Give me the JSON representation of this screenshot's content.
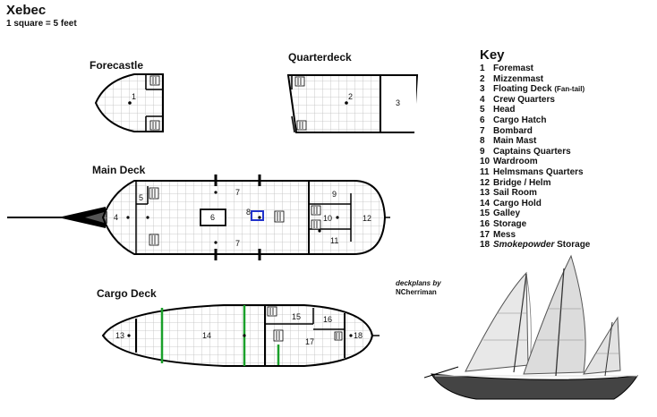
{
  "title": "Xebec",
  "scale": "1 square = 5 feet",
  "decks": {
    "forecastle": "Forecastle",
    "quarterdeck": "Quarterdeck",
    "main": "Main Deck",
    "cargo": "Cargo Deck"
  },
  "rooms": {
    "forecastle": [
      "1"
    ],
    "quarterdeck": [
      "2",
      "3"
    ],
    "main": [
      "4",
      "5",
      "6",
      "7",
      "8",
      "7",
      "9",
      "10",
      "12",
      "11"
    ],
    "cargo": [
      "13",
      "14",
      "15",
      "16",
      "17",
      "18"
    ]
  },
  "key": {
    "heading": "Key",
    "items": [
      {
        "num": "1",
        "label": "Foremast"
      },
      {
        "num": "2",
        "label": "Mizzenmast"
      },
      {
        "num": "3",
        "label": "Floating Deck",
        "note": "(Fan-tail)"
      },
      {
        "num": "4",
        "label": "Crew Quarters"
      },
      {
        "num": "5",
        "label": "Head"
      },
      {
        "num": "6",
        "label": "Cargo Hatch"
      },
      {
        "num": "7",
        "label": "Bombard"
      },
      {
        "num": "8",
        "label": "Main Mast"
      },
      {
        "num": "9",
        "label": "Captains Quarters"
      },
      {
        "num": "10",
        "label": "Wardroom"
      },
      {
        "num": "11",
        "label": "Helmsmans Quarters"
      },
      {
        "num": "12",
        "label": "Bridge / Helm"
      },
      {
        "num": "13",
        "label": "Sail Room"
      },
      {
        "num": "14",
        "label": "Cargo Hold"
      },
      {
        "num": "15",
        "label": "Galley"
      },
      {
        "num": "16",
        "label": "Storage"
      },
      {
        "num": "17",
        "label": "Mess"
      },
      {
        "num": "18",
        "label": "Storage",
        "italic_prefix": "Smokepowder"
      }
    ]
  },
  "credit": {
    "line1": "deckplans by",
    "line2": "NCherriman"
  },
  "colors": {
    "grid": "#bdbdbd",
    "hull": "#000000",
    "mast_marker": "#2233cc",
    "cargo_divider": "#1aa02a"
  },
  "ship_illustration": "xebec-sailing-ship-illustration"
}
